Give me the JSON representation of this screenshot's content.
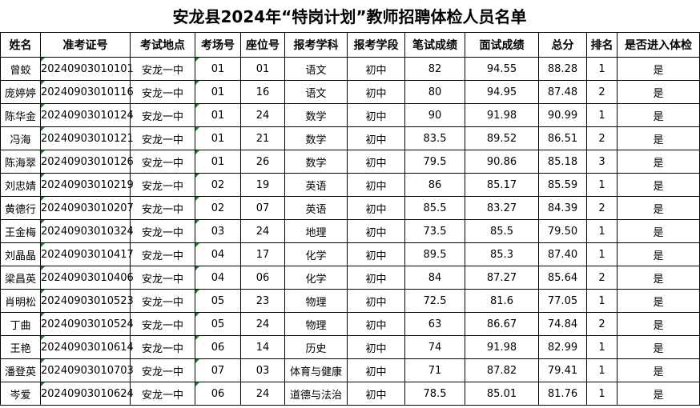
{
  "title": "安龙县2024年“特岗计划”教师招聘体检人员名单",
  "headers": [
    "姓名",
    "准考证号",
    "考试地点",
    "考场号",
    "座位号",
    "报考学科",
    "报考学段",
    "笔试成绩",
    "面试成绩",
    "总分",
    "排名",
    "是否进入体检"
  ],
  "rows": [
    [
      "曾蛟",
      "20240903010101",
      "安龙一中",
      "01",
      "01",
      "语文",
      "初中",
      "82",
      "94.55",
      "88.28",
      "1",
      "是"
    ],
    [
      "庞婷婷",
      "20240903010116",
      "安龙一中",
      "01",
      "16",
      "语文",
      "初中",
      "80",
      "94.95",
      "87.48",
      "2",
      "是"
    ],
    [
      "陈华金",
      "20240903010124",
      "安龙一中",
      "01",
      "24",
      "数学",
      "初中",
      "90",
      "91.98",
      "90.99",
      "1",
      "是"
    ],
    [
      "冯海",
      "20240903010121",
      "安龙一中",
      "01",
      "21",
      "数学",
      "初中",
      "83.5",
      "89.52",
      "86.51",
      "2",
      "是"
    ],
    [
      "陈海翠",
      "20240903010126",
      "安龙一中",
      "01",
      "26",
      "数学",
      "初中",
      "79.5",
      "90.86",
      "85.18",
      "3",
      "是"
    ],
    [
      "刘忠婧",
      "20240903010219",
      "安龙一中",
      "02",
      "19",
      "英语",
      "初中",
      "86",
      "85.17",
      "85.59",
      "1",
      "是"
    ],
    [
      "黄德行",
      "20240903010207",
      "安龙一中",
      "02",
      "07",
      "英语",
      "初中",
      "85.5",
      "83.27",
      "84.39",
      "2",
      "是"
    ],
    [
      "王金梅",
      "20240903010324",
      "安龙一中",
      "03",
      "24",
      "地理",
      "初中",
      "73.5",
      "85.5",
      "79.50",
      "1",
      "是"
    ],
    [
      "刘晶晶",
      "20240903010417",
      "安龙一中",
      "04",
      "17",
      "化学",
      "初中",
      "89.5",
      "85.3",
      "87.40",
      "1",
      "是"
    ],
    [
      "梁昌英",
      "20240903010406",
      "安龙一中",
      "04",
      "06",
      "化学",
      "初中",
      "84",
      "87.27",
      "85.64",
      "2",
      "是"
    ],
    [
      "肖明松",
      "20240903010523",
      "安龙一中",
      "05",
      "23",
      "物理",
      "初中",
      "72.5",
      "81.6",
      "77.05",
      "1",
      "是"
    ],
    [
      "丁曲",
      "20240903010524",
      "安龙一中",
      "05",
      "24",
      "物理",
      "初中",
      "63",
      "86.67",
      "74.84",
      "2",
      "是"
    ],
    [
      "王艳",
      "20240903010614",
      "安龙一中",
      "06",
      "14",
      "历史",
      "初中",
      "74",
      "91.98",
      "82.99",
      "1",
      "是"
    ],
    [
      "潘登英",
      "20240903010703",
      "安龙一中",
      "07",
      "03",
      "体育与健康",
      "初中",
      "71",
      "87.82",
      "79.41",
      "1",
      "是"
    ],
    [
      "岑爱",
      "20240903010624",
      "安龙一中",
      "06",
      "24",
      "道德与法治",
      "初中",
      "78.5",
      "85.01",
      "81.76",
      "1",
      "是"
    ]
  ]
}
